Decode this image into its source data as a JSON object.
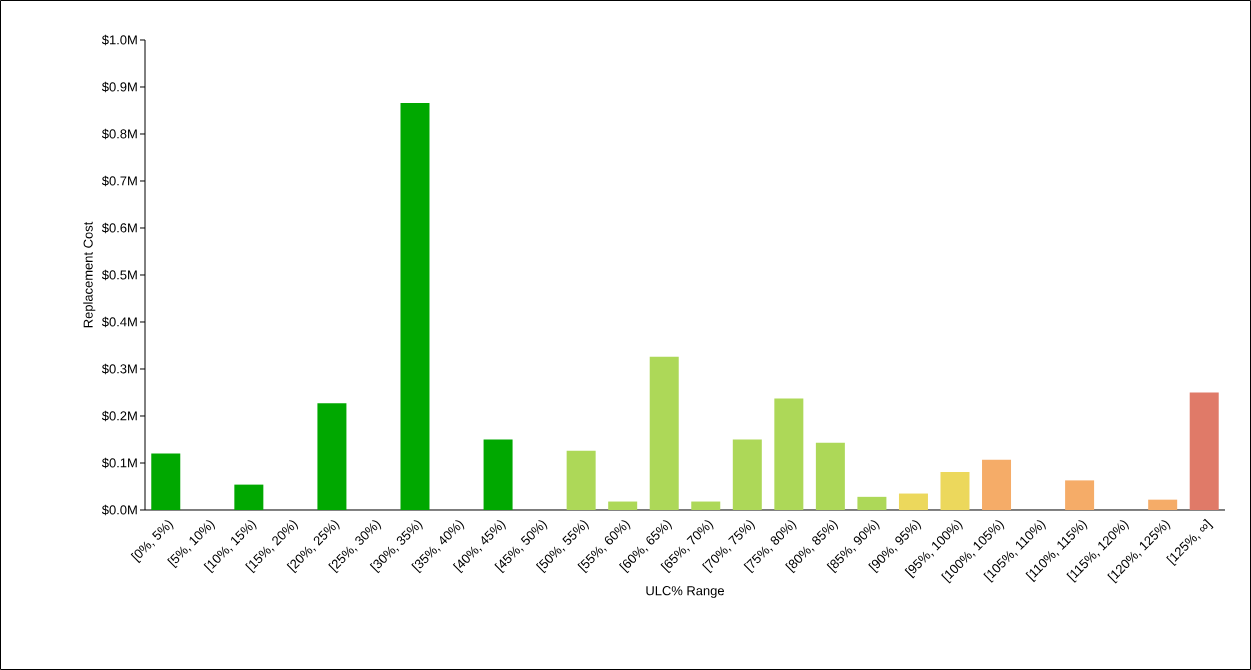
{
  "chart_data": {
    "type": "bar",
    "xlabel": "ULC% Range",
    "ylabel": "Replacement Cost",
    "categories": [
      "[0%, 5%)",
      "[5%, 10%)",
      "[10%, 15%)",
      "[15%, 20%)",
      "[20%, 25%)",
      "[25%, 30%)",
      "[30%, 35%)",
      "[35%, 40%)",
      "[40%, 45%)",
      "[45%, 50%)",
      "[50%, 55%)",
      "[55%, 60%)",
      "[60%, 65%)",
      "[65%, 70%)",
      "[70%, 75%)",
      "[75%, 80%)",
      "[80%, 85%)",
      "[85%, 90%)",
      "[90%, 95%)",
      "[95%, 100%)",
      "[100%, 105%)",
      "[105%, 110%)",
      "[110%, 115%)",
      "[115%, 120%)",
      "[120%, 125%)",
      "[125%, ∞]"
    ],
    "values": [
      0.12,
      0,
      0.054,
      0,
      0.227,
      0,
      0.866,
      0,
      0.15,
      0,
      0.126,
      0.018,
      0.326,
      0.018,
      0.15,
      0.237,
      0.143,
      0.028,
      0.035,
      0.081,
      0.107,
      0,
      0.063,
      0,
      0.022,
      0.25
    ],
    "colors": [
      "#00a800",
      "#00a800",
      "#00a800",
      "#00a800",
      "#00a800",
      "#00a800",
      "#00a800",
      "#00a800",
      "#00a800",
      "#00a800",
      "#add858",
      "#add858",
      "#add858",
      "#add858",
      "#add858",
      "#add858",
      "#add858",
      "#add858",
      "#ecd85c",
      "#ecd85c",
      "#f5ac68",
      "#f5ac68",
      "#f5ac68",
      "#f5ac68",
      "#f5ac68",
      "#e07a68"
    ],
    "ylim": [
      0,
      1.0
    ],
    "yticks": [
      {
        "value": 0,
        "label": "$0.0M"
      },
      {
        "value": 0.1,
        "label": "$0.1M"
      },
      {
        "value": 0.2,
        "label": "$0.2M"
      },
      {
        "value": 0.3,
        "label": "$0.3M"
      },
      {
        "value": 0.4,
        "label": "$0.4M"
      },
      {
        "value": 0.5,
        "label": "$0.5M"
      },
      {
        "value": 0.6,
        "label": "$0.6M"
      },
      {
        "value": 0.7,
        "label": "$0.7M"
      },
      {
        "value": 0.8,
        "label": "$0.8M"
      },
      {
        "value": 0.9,
        "label": "$0.9M"
      },
      {
        "value": 1.0,
        "label": "$1.0M"
      }
    ]
  }
}
